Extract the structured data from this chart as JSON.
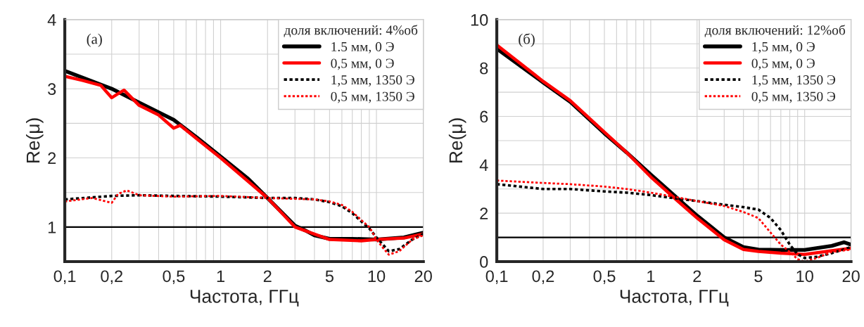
{
  "chart_data": [
    {
      "type": "line",
      "xlabel": "Частота, ГГц",
      "ylabel": "Re(μ)",
      "legend_title": "доля включений: 4%об",
      "log": "x",
      "grid": true,
      "legend": "top right",
      "xlim": [
        0.1,
        20
      ],
      "xticks": [
        {
          "value": 0.1,
          "label": "0,1"
        },
        {
          "value": 0.2,
          "label": "0,2"
        },
        {
          "value": 0.3,
          "label": null
        },
        {
          "value": 0.4,
          "label": null
        },
        {
          "value": 0.5,
          "label": "0,5"
        },
        {
          "value": 0.6,
          "label": null
        },
        {
          "value": 0.7,
          "label": null
        },
        {
          "value": 0.8,
          "label": null
        },
        {
          "value": 0.9,
          "label": null
        },
        1,
        2,
        {
          "value": 3,
          "label": null
        },
        {
          "value": 4,
          "label": null
        },
        5,
        {
          "value": 6,
          "label": null
        },
        {
          "value": 7,
          "label": null
        },
        {
          "value": 8,
          "label": null
        },
        {
          "value": 9,
          "label": null
        },
        10,
        20
      ],
      "ylim": [
        0.5,
        4
      ],
      "yticks": [
        {
          "value": 0.5,
          "label": null
        },
        1,
        {
          "value": 1.5,
          "label": null
        },
        2,
        {
          "value": 2.5,
          "label": null
        },
        3,
        {
          "value": 3.5,
          "label": null
        },
        4
      ],
      "ref_lines": [
        {
          "axis": "y",
          "value": 1,
          "color": "#000000",
          "line_style": "solid"
        }
      ],
      "annotations": [
        "(a)"
      ],
      "series": [
        {
          "name": "1.5 мм, 0 Э",
          "color": "#000000",
          "line_style": "solid",
          "x": [
            0.1,
            0.2,
            0.3,
            0.5,
            0.7,
            1,
            1.5,
            2,
            3,
            3.5,
            4,
            5,
            7,
            10,
            15,
            20
          ],
          "values": [
            3.26,
            3.0,
            2.8,
            2.55,
            2.3,
            2.02,
            1.7,
            1.42,
            1.02,
            0.95,
            0.88,
            0.83,
            0.83,
            0.82,
            0.85,
            0.92
          ]
        },
        {
          "name": "0,5 мм, 0 Э",
          "color": "#ff0000",
          "line_style": "solid",
          "x": [
            0.1,
            0.13,
            0.17,
            0.2,
            0.22,
            0.24,
            0.3,
            0.4,
            0.5,
            0.55,
            0.7,
            1,
            2,
            3,
            5,
            8,
            10,
            15,
            20
          ],
          "values": [
            3.18,
            3.12,
            3.05,
            2.87,
            2.93,
            2.98,
            2.76,
            2.62,
            2.43,
            2.47,
            2.28,
            2.0,
            1.42,
            1.0,
            0.82,
            0.8,
            0.82,
            0.84,
            0.9
          ]
        },
        {
          "name": "1,5 мм, 1350 Э",
          "color": "#000000",
          "line_style": "dotted",
          "x": [
            0.1,
            0.2,
            0.3,
            0.5,
            1,
            2,
            3,
            4,
            5,
            6,
            7,
            8,
            9,
            10,
            12,
            14,
            17,
            20
          ],
          "values": [
            1.4,
            1.45,
            1.46,
            1.45,
            1.44,
            1.42,
            1.42,
            1.4,
            1.36,
            1.3,
            1.2,
            1.08,
            0.98,
            0.85,
            0.65,
            0.68,
            0.82,
            0.9
          ]
        },
        {
          "name": "0,5 мм, 1350 Э",
          "color": "#ff0000",
          "line_style": "dotted",
          "x": [
            0.1,
            0.15,
            0.2,
            0.22,
            0.25,
            0.3,
            0.5,
            1,
            2,
            4,
            5,
            6,
            7,
            8,
            9,
            10,
            11,
            12,
            14,
            17,
            20
          ],
          "values": [
            1.37,
            1.42,
            1.35,
            1.48,
            1.53,
            1.46,
            1.44,
            1.45,
            1.42,
            1.4,
            1.37,
            1.32,
            1.22,
            1.1,
            1.0,
            0.82,
            0.7,
            0.6,
            0.65,
            0.82,
            0.88
          ]
        }
      ]
    },
    {
      "type": "line",
      "xlabel": "Частота, ГГц",
      "ylabel": "Re(μ)",
      "legend_title": "доля включений: 12%об",
      "log": "x",
      "grid": true,
      "legend": "top right",
      "xlim": [
        0.1,
        20
      ],
      "xticks": [
        {
          "value": 0.1,
          "label": "0,1"
        },
        {
          "value": 0.2,
          "label": "0,2"
        },
        {
          "value": 0.3,
          "label": null
        },
        {
          "value": 0.4,
          "label": null
        },
        {
          "value": 0.5,
          "label": "0,5"
        },
        {
          "value": 0.6,
          "label": null
        },
        {
          "value": 0.7,
          "label": null
        },
        {
          "value": 0.8,
          "label": null
        },
        {
          "value": 0.9,
          "label": null
        },
        1,
        2,
        {
          "value": 3,
          "label": null
        },
        {
          "value": 4,
          "label": null
        },
        5,
        {
          "value": 6,
          "label": null
        },
        {
          "value": 7,
          "label": null
        },
        {
          "value": 8,
          "label": null
        },
        {
          "value": 9,
          "label": null
        },
        10,
        20
      ],
      "ylim": [
        0,
        10
      ],
      "yticks": [
        0,
        {
          "value": 1,
          "label": null
        },
        2,
        {
          "value": 3,
          "label": null
        },
        4,
        {
          "value": 5,
          "label": null
        },
        6,
        {
          "value": 7,
          "label": null
        },
        8,
        {
          "value": 9,
          "label": null
        },
        10
      ],
      "ref_lines": [
        {
          "axis": "y",
          "value": 1,
          "color": "#000000",
          "line_style": "solid"
        }
      ],
      "annotations": [
        "(б)"
      ],
      "series": [
        {
          "name": "1,5 мм, 0 Э",
          "color": "#000000",
          "line_style": "solid",
          "x": [
            0.1,
            0.2,
            0.3,
            0.5,
            0.7,
            1,
            1.5,
            2,
            3,
            4,
            5,
            7,
            10,
            15,
            18,
            20
          ],
          "values": [
            8.8,
            7.4,
            6.6,
            5.3,
            4.5,
            3.6,
            2.6,
            1.9,
            1.0,
            0.6,
            0.5,
            0.48,
            0.48,
            0.65,
            0.8,
            0.7
          ]
        },
        {
          "name": "0,5 мм, 0 Э",
          "color": "#ff0000",
          "line_style": "solid",
          "x": [
            0.1,
            0.2,
            0.3,
            0.5,
            0.7,
            1,
            1.5,
            2,
            3,
            4,
            5,
            7,
            10,
            15,
            20
          ],
          "values": [
            8.95,
            7.45,
            6.65,
            5.35,
            4.5,
            3.5,
            2.5,
            1.8,
            0.9,
            0.5,
            0.42,
            0.35,
            0.3,
            0.45,
            0.55
          ]
        },
        {
          "name": "1,5 мм, 1350 Э",
          "color": "#000000",
          "line_style": "dotted",
          "x": [
            0.1,
            0.2,
            0.3,
            0.5,
            0.7,
            1,
            1.5,
            2,
            3,
            4,
            5,
            6,
            7,
            8,
            9,
            10,
            12,
            15,
            20
          ],
          "values": [
            3.2,
            3.0,
            3.0,
            2.9,
            2.85,
            2.75,
            2.6,
            2.5,
            2.35,
            2.25,
            2.15,
            1.8,
            1.3,
            0.7,
            0.3,
            0.15,
            0.2,
            0.35,
            0.6
          ]
        },
        {
          "name": "0,5 мм, 1350 Э",
          "color": "#ff0000",
          "line_style": "dotted",
          "x": [
            0.1,
            0.2,
            0.3,
            0.5,
            0.7,
            1,
            1.5,
            2,
            3,
            4,
            5,
            6,
            7,
            8,
            9,
            10,
            12,
            15,
            20
          ],
          "values": [
            3.35,
            3.25,
            3.2,
            3.1,
            3.0,
            2.85,
            2.65,
            2.5,
            2.3,
            2.05,
            1.8,
            1.2,
            0.7,
            0.4,
            0.1,
            0.0,
            0.15,
            0.4,
            0.5
          ]
        }
      ]
    }
  ]
}
